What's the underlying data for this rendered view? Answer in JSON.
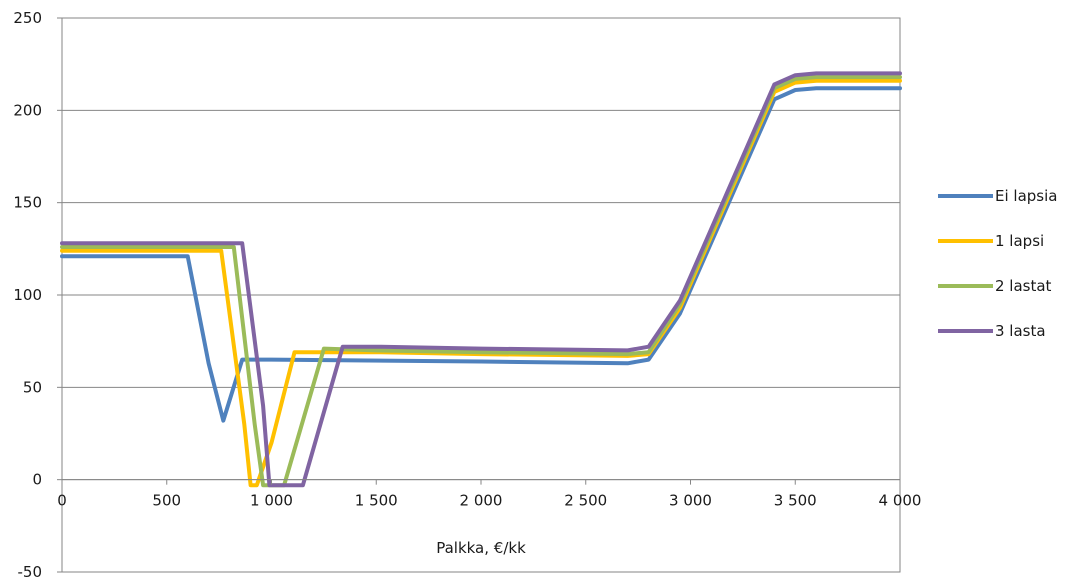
{
  "chart_data": {
    "type": "line",
    "title": "",
    "xlabel": "Palkka, €/kk",
    "ylabel": "",
    "xlim": [
      0,
      4000
    ],
    "ylim": [
      -50,
      250
    ],
    "x_ticks": [
      0,
      500,
      1000,
      1500,
      2000,
      2500,
      3000,
      3500,
      4000
    ],
    "x_tick_labels": [
      "0",
      "500",
      "1 000",
      "1 500",
      "2 000",
      "2 500",
      "3 000",
      "3 500",
      "4 000"
    ],
    "y_ticks": [
      -50,
      0,
      50,
      100,
      150,
      200,
      250
    ],
    "y_tick_labels": [
      "-50",
      "0",
      "50",
      "100",
      "150",
      "200",
      "250"
    ],
    "grid": "horizontal",
    "legend_position": "right",
    "series": [
      {
        "name": "Ei lapsia",
        "color": "#4f81bd",
        "points": [
          [
            0,
            121
          ],
          [
            600,
            121
          ],
          [
            700,
            63
          ],
          [
            770,
            32
          ],
          [
            860,
            65
          ],
          [
            1000,
            65
          ],
          [
            2000,
            64
          ],
          [
            2700,
            63
          ],
          [
            2800,
            65
          ],
          [
            2950,
            90
          ],
          [
            3400,
            206
          ],
          [
            3500,
            211
          ],
          [
            3600,
            212
          ],
          [
            4000,
            212
          ]
        ]
      },
      {
        "name": "1 lapsi",
        "color": "#ffc000",
        "points": [
          [
            0,
            124
          ],
          [
            760,
            124
          ],
          [
            870,
            30
          ],
          [
            900,
            -3
          ],
          [
            930,
            -3
          ],
          [
            1000,
            20
          ],
          [
            1110,
            69
          ],
          [
            1500,
            69
          ],
          [
            2000,
            68
          ],
          [
            2700,
            67
          ],
          [
            2800,
            68
          ],
          [
            2950,
            93
          ],
          [
            3400,
            210
          ],
          [
            3500,
            215
          ],
          [
            3600,
            216
          ],
          [
            4000,
            216
          ]
        ]
      },
      {
        "name": "2 lastat",
        "color": "#9bbb59",
        "points": [
          [
            0,
            126
          ],
          [
            820,
            126
          ],
          [
            920,
            30
          ],
          [
            960,
            -3
          ],
          [
            1060,
            -3
          ],
          [
            1250,
            71
          ],
          [
            1500,
            70
          ],
          [
            2000,
            69
          ],
          [
            2700,
            68
          ],
          [
            2800,
            69
          ],
          [
            2950,
            95
          ],
          [
            3400,
            212
          ],
          [
            3500,
            217
          ],
          [
            3600,
            218
          ],
          [
            4000,
            218
          ]
        ]
      },
      {
        "name": "3 lasta",
        "color": "#8064a2",
        "points": [
          [
            0,
            128
          ],
          [
            860,
            128
          ],
          [
            960,
            40
          ],
          [
            990,
            -3
          ],
          [
            1150,
            -3
          ],
          [
            1340,
            72
          ],
          [
            1500,
            72
          ],
          [
            2000,
            71
          ],
          [
            2700,
            70
          ],
          [
            2800,
            72
          ],
          [
            2950,
            97
          ],
          [
            3400,
            214
          ],
          [
            3500,
            219
          ],
          [
            3600,
            220
          ],
          [
            4000,
            220
          ]
        ]
      }
    ]
  }
}
